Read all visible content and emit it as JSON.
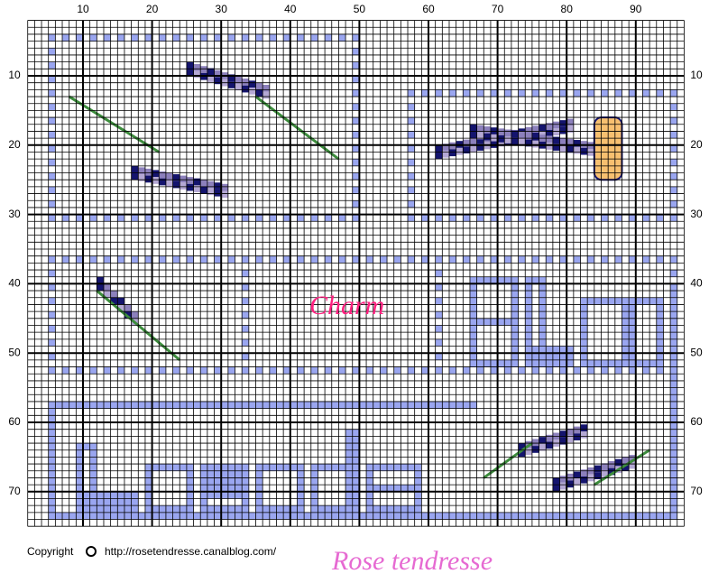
{
  "header": {
    "top_labels": [
      10,
      20,
      30,
      40,
      50,
      60,
      70,
      80,
      90
    ],
    "side_labels": [
      10,
      20,
      30,
      40,
      50,
      60,
      70
    ]
  },
  "motif_text": "Charm",
  "footer": {
    "copyright": "Copyright",
    "url": "http://rosetendresse.canalblog.com/",
    "signature": "Rose tendresse"
  }
}
